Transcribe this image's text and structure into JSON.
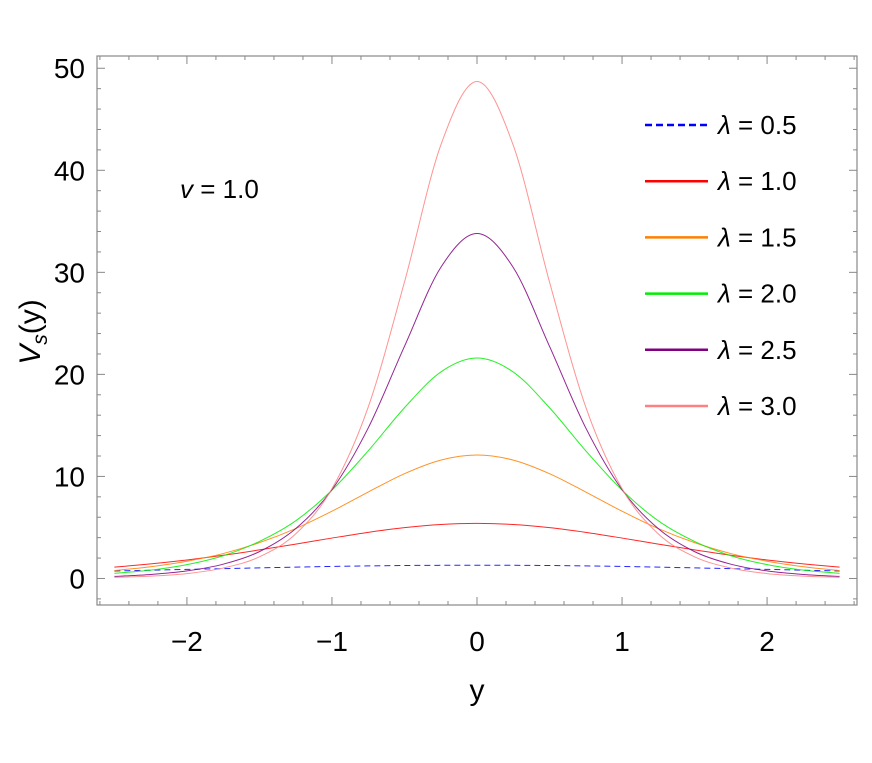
{
  "chart_data": {
    "type": "line",
    "title": "",
    "xlabel": "y",
    "ylabel_main": "V",
    "ylabel_sub": "s",
    "ylabel_tail": "(y)",
    "xlim": [
      -2.62,
      2.62
    ],
    "ylim": [
      -2.6,
      51.2
    ],
    "xticks": [
      -2,
      -1,
      0,
      1,
      2
    ],
    "xtick_labels": [
      "−2",
      "−1",
      "0",
      "1",
      "2"
    ],
    "yticks": [
      0,
      10,
      20,
      30,
      40,
      50
    ],
    "ytick_labels": [
      "0",
      "10",
      "20",
      "30",
      "40",
      "50"
    ],
    "grid": false,
    "legend_position": "top-right",
    "annotation": {
      "symbol": "v",
      "text": " = 1.0"
    },
    "x": [
      -2.5,
      -2.25,
      -2.0,
      -1.75,
      -1.5,
      -1.25,
      -1.0,
      -0.75,
      -0.5,
      -0.25,
      0,
      0.25,
      0.5,
      0.75,
      1.0,
      1.25,
      1.5,
      1.75,
      2.0,
      2.25,
      2.5
    ],
    "series": [
      {
        "name": "λ = 0.5",
        "symbol": "λ",
        "value_text": " = 0.5",
        "color": "#0000ff",
        "dashed": true,
        "values": [
          0.73,
          0.81,
          0.89,
          0.96,
          1.04,
          1.11,
          1.18,
          1.23,
          1.27,
          1.29,
          1.3,
          1.29,
          1.27,
          1.23,
          1.18,
          1.11,
          1.04,
          0.96,
          0.89,
          0.81,
          0.73
        ]
      },
      {
        "name": "λ = 1.0",
        "symbol": "λ",
        "value_text": " = 1.0",
        "color": "#ff0000",
        "dashed": false,
        "values": [
          1.11,
          1.43,
          1.81,
          2.27,
          2.8,
          3.37,
          3.96,
          4.52,
          4.98,
          5.29,
          5.4,
          5.29,
          4.98,
          4.52,
          3.96,
          3.37,
          2.8,
          2.27,
          1.81,
          1.43,
          1.11
        ]
      },
      {
        "name": "λ = 1.5",
        "symbol": "λ",
        "value_text": " = 1.5",
        "color": "#ff8000",
        "dashed": false,
        "values": [
          0.78,
          1.15,
          1.69,
          2.44,
          3.51,
          4.89,
          6.59,
          8.47,
          10.27,
          11.6,
          12.1,
          11.6,
          10.27,
          8.47,
          6.59,
          4.89,
          3.51,
          2.44,
          1.69,
          1.15,
          0.78
        ]
      },
      {
        "name": "λ = 2.0",
        "symbol": "λ",
        "value_text": " = 2.0",
        "color": "#00ee00",
        "dashed": false,
        "values": [
          0.5,
          0.82,
          1.36,
          2.23,
          3.63,
          5.65,
          8.66,
          12.51,
          16.73,
          20.23,
          21.6,
          20.23,
          16.73,
          12.51,
          8.66,
          5.65,
          3.63,
          2.23,
          1.36,
          0.82,
          0.5
        ]
      },
      {
        "name": "λ = 2.5",
        "symbol": "λ",
        "value_text": " = 2.5",
        "color": "#800080",
        "dashed": false,
        "values": [
          0.2,
          0.39,
          0.74,
          1.4,
          2.63,
          4.88,
          8.7,
          14.75,
          22.75,
          30.47,
          33.8,
          30.47,
          22.75,
          14.75,
          8.7,
          4.88,
          2.63,
          1.4,
          0.74,
          0.39,
          0.2
        ]
      },
      {
        "name": "λ = 3.0",
        "symbol": "λ",
        "value_text": " = 3.0",
        "color": "#ff8080",
        "dashed": false,
        "values": [
          0.11,
          0.23,
          0.48,
          1.02,
          2.12,
          4.37,
          8.8,
          16.8,
          29.05,
          42.45,
          48.7,
          42.45,
          29.05,
          16.8,
          8.8,
          4.37,
          2.12,
          1.02,
          0.48,
          0.23,
          0.11
        ]
      }
    ]
  }
}
